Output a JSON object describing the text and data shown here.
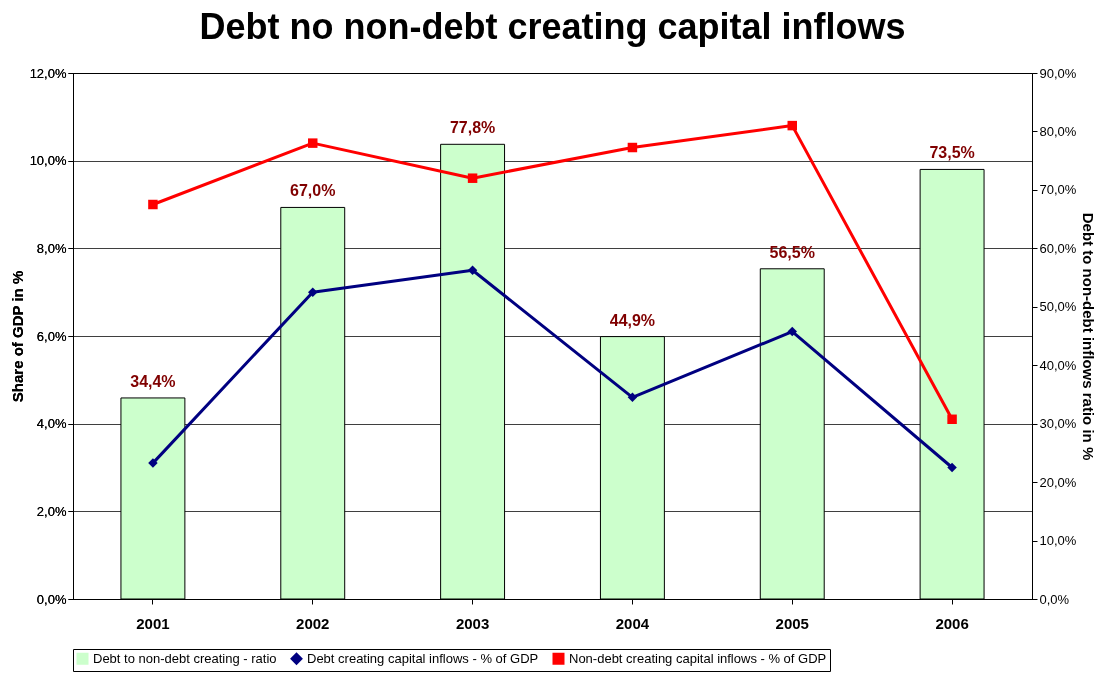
{
  "chart_data": {
    "type": "bar",
    "title": "Debt no non-debt creating capital inflows",
    "ylabel": "Share of GDP in %",
    "y2label": "Debt to non-debt inflows ratio in %",
    "categories": [
      "2001",
      "2002",
      "2003",
      "2004",
      "2005",
      "2006"
    ],
    "series": [
      {
        "name": "Debt to non-debt creating - ratio",
        "axis": "y2",
        "color": "#ccffcc",
        "values": [
          34.4,
          67.0,
          77.8,
          44.9,
          56.5,
          73.5
        ],
        "value_labels": [
          "34,4%",
          "67,0%",
          "77,8%",
          "44,9%",
          "56,5%",
          "73,5%"
        ]
      },
      {
        "name": "Debt creating capital inflows - % of GDP",
        "type": "line",
        "color": "#000080",
        "marker": "diamond",
        "values": [
          3.1,
          7.0,
          7.5,
          4.6,
          6.1,
          3.0
        ]
      },
      {
        "name": "Non-debt creating capital inflows - % of GDP",
        "type": "line",
        "color": "#ff0000",
        "marker": "square",
        "values": [
          9.0,
          10.4,
          9.6,
          10.3,
          10.8,
          4.1
        ]
      }
    ],
    "ylim": [
      0,
      12
    ],
    "yticks": [
      {
        "value": 0,
        "label": "0,0%"
      },
      {
        "value": 2,
        "label": "2,0%"
      },
      {
        "value": 4,
        "label": "4,0%"
      },
      {
        "value": 6,
        "label": "6,0%"
      },
      {
        "value": 8,
        "label": "8,0%"
      },
      {
        "value": 10,
        "label": "10,0%"
      },
      {
        "value": 12,
        "label": "12,0%"
      }
    ],
    "y2lim": [
      0,
      90
    ],
    "y2ticks": [
      {
        "value": 0,
        "label": "0,0%"
      },
      {
        "value": 10,
        "label": "10,0%"
      },
      {
        "value": 20,
        "label": "20,0%"
      },
      {
        "value": 30,
        "label": "30,0%"
      },
      {
        "value": 40,
        "label": "40,0%"
      },
      {
        "value": 50,
        "label": "50,0%"
      },
      {
        "value": 60,
        "label": "60,0%"
      },
      {
        "value": 70,
        "label": "70,0%"
      },
      {
        "value": 80,
        "label": "80,0%"
      },
      {
        "value": 90,
        "label": "90,0%"
      }
    ],
    "grid": "y",
    "legend": "bottom",
    "line_style": "solid"
  }
}
